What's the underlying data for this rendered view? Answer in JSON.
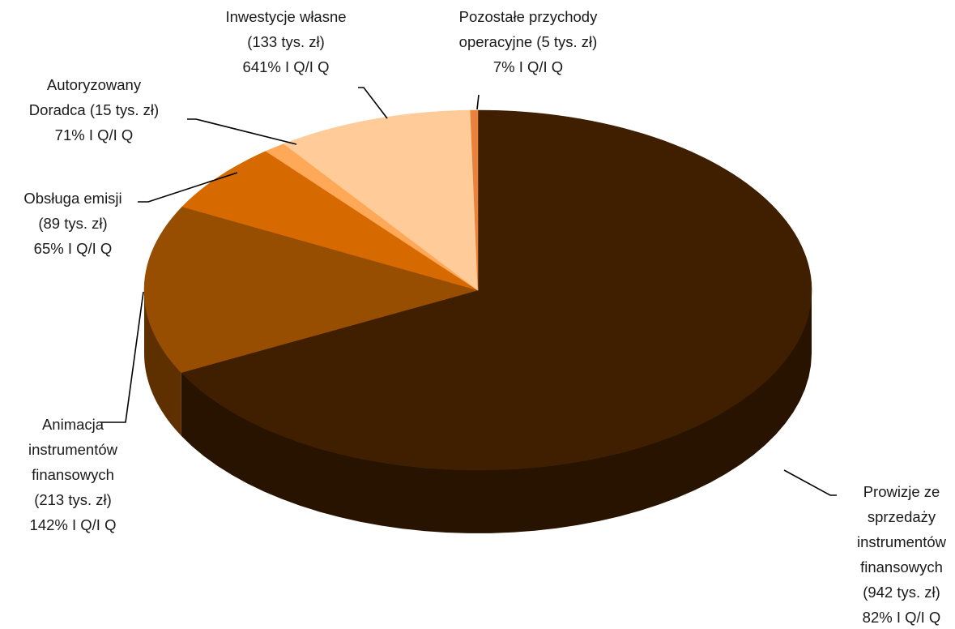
{
  "chart_data": {
    "type": "pie",
    "style": "3d",
    "title": "",
    "slices": [
      {
        "name": "Prowizje ze sprzedaży instrumentów finansowych",
        "value": 942,
        "color": "#3F1F00",
        "label_lines": [
          "Prowizje ze",
          "sprzedaży",
          "instrumentów",
          "finansowych",
          "(942 tys. zł)",
          "82%  I Q/I Q"
        ]
      },
      {
        "name": "Animacja instrumentów finansowych",
        "value": 213,
        "color": "#984E00",
        "label_lines": [
          "Animacja",
          "instrumentów",
          "finansowych",
          "(213 tys. zł)",
          "142%  I Q/I Q"
        ]
      },
      {
        "name": "Obsługa emisji",
        "value": 89,
        "color": "#D66A00",
        "label_lines": [
          "Obsługa emisji",
          "(89 tys. zł)",
          "65% I Q/I Q"
        ]
      },
      {
        "name": "Autoryzowany Doradca",
        "value": 15,
        "color": "#FFA858",
        "label_lines": [
          "Autoryzowany",
          "Doradca (15 tys. zł)",
          "71%  I Q/I Q"
        ]
      },
      {
        "name": "Inwestycje własne",
        "value": 133,
        "color": "#FFCC99",
        "label_lines": [
          "Inwestycje własne",
          "(133 tys. zł)",
          "641% I Q/I Q"
        ]
      },
      {
        "name": "Pozostałe przychody operacyjne",
        "value": 5,
        "color": "#E8823C",
        "label_lines": [
          "Pozostałe przychody",
          "operacyjne (5 tys. zł)",
          "7%  I Q/I Q"
        ]
      }
    ],
    "unit": "tys. zł",
    "start": "12 o'clock",
    "direction": "clockwise",
    "legend": "none (data labels with leader lines)"
  }
}
